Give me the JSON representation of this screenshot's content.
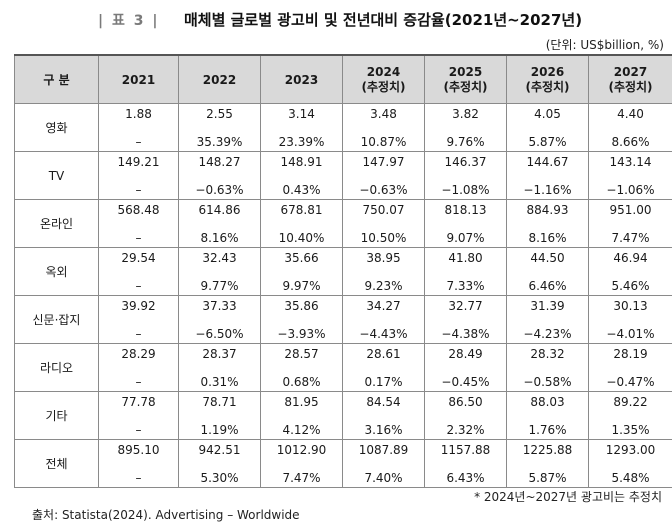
{
  "header": {
    "table_label": "| 표 3 |",
    "title": "매체별 글로벌 광고비 및 전년대비 증감율(2021년~2027년)",
    "unit": "(단위: US$billion, %)"
  },
  "columns": [
    {
      "year": "구 분",
      "sub": ""
    },
    {
      "year": "2021",
      "sub": ""
    },
    {
      "year": "2022",
      "sub": ""
    },
    {
      "year": "2023",
      "sub": ""
    },
    {
      "year": "2024",
      "sub": "(추정치)"
    },
    {
      "year": "2025",
      "sub": "(추정치)"
    },
    {
      "year": "2026",
      "sub": "(추정치)"
    },
    {
      "year": "2027",
      "sub": "(추정치)"
    }
  ],
  "rows": [
    {
      "category": "영화",
      "values": [
        "1.88",
        "2.55",
        "3.14",
        "3.48",
        "3.82",
        "4.05",
        "4.40"
      ],
      "growth": [
        "–",
        "35.39%",
        "23.39%",
        "10.87%",
        "9.76%",
        "5.87%",
        "8.66%"
      ]
    },
    {
      "category": "TV",
      "values": [
        "149.21",
        "148.27",
        "148.91",
        "147.97",
        "146.37",
        "144.67",
        "143.14"
      ],
      "growth": [
        "–",
        "−0.63%",
        "0.43%",
        "−0.63%",
        "−1.08%",
        "−1.16%",
        "−1.06%"
      ]
    },
    {
      "category": "온라인",
      "values": [
        "568.48",
        "614.86",
        "678.81",
        "750.07",
        "818.13",
        "884.93",
        "951.00"
      ],
      "growth": [
        "–",
        "8.16%",
        "10.40%",
        "10.50%",
        "9.07%",
        "8.16%",
        "7.47%"
      ]
    },
    {
      "category": "옥외",
      "values": [
        "29.54",
        "32.43",
        "35.66",
        "38.95",
        "41.80",
        "44.50",
        "46.94"
      ],
      "growth": [
        "–",
        "9.77%",
        "9.97%",
        "9.23%",
        "7.33%",
        "6.46%",
        "5.46%"
      ]
    },
    {
      "category": "신문·잡지",
      "values": [
        "39.92",
        "37.33",
        "35.86",
        "34.27",
        "32.77",
        "31.39",
        "30.13"
      ],
      "growth": [
        "–",
        "−6.50%",
        "−3.93%",
        "−4.43%",
        "−4.38%",
        "−4.23%",
        "−4.01%"
      ]
    },
    {
      "category": "라디오",
      "values": [
        "28.29",
        "28.37",
        "28.57",
        "28.61",
        "28.49",
        "28.32",
        "28.19"
      ],
      "growth": [
        "–",
        "0.31%",
        "0.68%",
        "0.17%",
        "−0.45%",
        "−0.58%",
        "−0.47%"
      ]
    },
    {
      "category": "기타",
      "values": [
        "77.78",
        "78.71",
        "81.95",
        "84.54",
        "86.50",
        "88.03",
        "89.22"
      ],
      "growth": [
        "–",
        "1.19%",
        "4.12%",
        "3.16%",
        "2.32%",
        "1.76%",
        "1.35%"
      ]
    },
    {
      "category": "전체",
      "values": [
        "895.10",
        "942.51",
        "1012.90",
        "1087.89",
        "1157.88",
        "1225.88",
        "1293.00"
      ],
      "growth": [
        "–",
        "5.30%",
        "7.47%",
        "7.40%",
        "6.43%",
        "5.87%",
        "5.48%"
      ]
    }
  ],
  "footer": {
    "note": "* 2024년~2027년 광고비는 추정치",
    "source": "출처: Statista(2024). Advertising – Worldwide"
  }
}
